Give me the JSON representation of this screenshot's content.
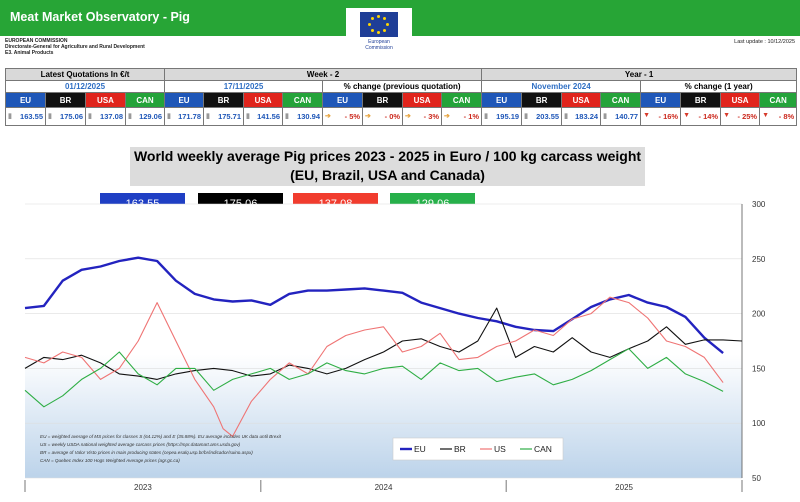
{
  "header": {
    "title": "Meat Market Observatory - Pig",
    "org_lines": [
      "EUROPEAN COMMISSION",
      "Directorate-General for Agriculture and Rural Development",
      "E3. Animal Products"
    ],
    "logo_text": [
      "European",
      "Commission"
    ],
    "last_update": "Last update : 10/12/2025"
  },
  "colors": {
    "eu": "#1f57b8",
    "br": "#111111",
    "usa": "#e0241c",
    "can": "#24a33a",
    "brand": "#27a536"
  },
  "table": {
    "groups": {
      "latest": "Latest Quotations In €/t",
      "week": "Week - 2",
      "year": "Year - 1",
      "pct_prev": "% change (previous quotation)",
      "pct_year": "% change (1 year)"
    },
    "dates": {
      "latest": "01/12/2025",
      "week": "17/11/2025",
      "year": "November 2024"
    },
    "labels": [
      "EU",
      "BR",
      "USA",
      "CAN"
    ],
    "latest": [
      "163.55",
      "175.06",
      "137.08",
      "129.06"
    ],
    "week": [
      "171.78",
      "175.71",
      "141.56",
      "130.94"
    ],
    "pct_prev": [
      "- 5%",
      "- 0%",
      "- 3%",
      "- 1%"
    ],
    "year": [
      "195.19",
      "203.55",
      "183.24",
      "140.77"
    ],
    "pct_year": [
      "- 16%",
      "- 14%",
      "- 25%",
      "- 8%"
    ]
  },
  "chart_data": {
    "type": "line",
    "title": "World weekly average Pig prices 2023 - 2025  in Euro / 100 kg carcass weight",
    "subtitle": "(EU, Brazil, USA and Canada)",
    "latest_boxes": [
      "163.55",
      "175.06",
      "137.08",
      "129.06"
    ],
    "ylim": [
      50,
      300
    ],
    "y_ticks": [
      50,
      100,
      150,
      200,
      250,
      300
    ],
    "y_axis_side": "right",
    "x_years": [
      "2023",
      "2024",
      "2025"
    ],
    "x_range_weeks": [
      0,
      152
    ],
    "legend": {
      "position": "bottom-center",
      "entries": [
        "EU",
        "BR",
        "US",
        "CAN"
      ]
    },
    "notes": [
      "EU    = weighted average of MS prices for classes S (64.12%) and E (35.88%). EU average includes UK data  until Brexit",
      "US    = weekly USDA national weighted average carcass prices (https://mpr.datamart.ams.usda.gov)",
      "BR    = average of Valor Visto prices in main producing states (cepea.esalq.usp.br/br/indicador/suino.aspx)",
      "CAN = Quebec Index 100 Hogs Weighted Average prices (agr.gc.ca)"
    ],
    "series": [
      {
        "name": "EU",
        "color": "#2323bf",
        "x": [
          0,
          4,
          8,
          12,
          16,
          20,
          24,
          28,
          32,
          36,
          40,
          44,
          48,
          52,
          56,
          60,
          64,
          68,
          72,
          76,
          80,
          84,
          88,
          92,
          96,
          100,
          104,
          108,
          112,
          116,
          120,
          124,
          128,
          132,
          136,
          140,
          144,
          148
        ],
        "y": [
          205,
          207,
          230,
          240,
          243,
          248,
          251,
          248,
          230,
          218,
          213,
          211,
          212,
          208,
          218,
          221,
          221,
          222,
          223,
          221,
          219,
          210,
          205,
          200,
          196,
          193,
          188,
          185,
          184,
          195,
          206,
          213,
          217,
          210,
          206,
          197,
          178,
          164
        ]
      },
      {
        "name": "BR",
        "color": "#111111",
        "x": [
          0,
          4,
          8,
          12,
          16,
          20,
          24,
          28,
          32,
          36,
          40,
          44,
          48,
          52,
          56,
          60,
          64,
          68,
          72,
          76,
          80,
          84,
          88,
          92,
          96,
          100,
          104,
          108,
          112,
          116,
          120,
          124,
          128,
          132,
          136,
          140,
          144,
          148,
          152
        ],
        "y": [
          150,
          160,
          158,
          162,
          155,
          145,
          143,
          140,
          145,
          148,
          150,
          148,
          143,
          145,
          153,
          150,
          145,
          150,
          158,
          165,
          175,
          177,
          170,
          165,
          175,
          205,
          160,
          170,
          165,
          178,
          165,
          160,
          168,
          175,
          188,
          172,
          176,
          176,
          175
        ]
      },
      {
        "name": "US",
        "color": "#ef7474",
        "x": [
          0,
          4,
          8,
          12,
          16,
          20,
          24,
          28,
          32,
          36,
          40,
          42,
          44,
          48,
          52,
          56,
          60,
          64,
          68,
          72,
          76,
          80,
          84,
          88,
          92,
          96,
          100,
          104,
          108,
          112,
          116,
          120,
          124,
          128,
          132,
          136,
          140,
          144,
          148
        ],
        "y": [
          160,
          155,
          165,
          160,
          140,
          150,
          175,
          210,
          175,
          140,
          115,
          95,
          88,
          120,
          140,
          155,
          145,
          170,
          180,
          185,
          188,
          165,
          170,
          182,
          158,
          160,
          170,
          175,
          185,
          180,
          195,
          200,
          215,
          210,
          196,
          175,
          170,
          160,
          137
        ]
      },
      {
        "name": "CAN",
        "color": "#2fae45",
        "x": [
          0,
          4,
          8,
          12,
          16,
          20,
          24,
          28,
          32,
          36,
          40,
          44,
          48,
          52,
          56,
          60,
          64,
          68,
          72,
          76,
          80,
          84,
          88,
          92,
          96,
          100,
          104,
          108,
          112,
          116,
          120,
          124,
          128,
          132,
          136,
          140,
          144,
          148
        ],
        "y": [
          130,
          115,
          125,
          140,
          150,
          165,
          145,
          135,
          150,
          150,
          130,
          140,
          145,
          150,
          140,
          145,
          155,
          148,
          145,
          150,
          152,
          140,
          155,
          148,
          150,
          138,
          142,
          145,
          135,
          140,
          148,
          158,
          168,
          150,
          160,
          145,
          138,
          129
        ]
      }
    ]
  }
}
